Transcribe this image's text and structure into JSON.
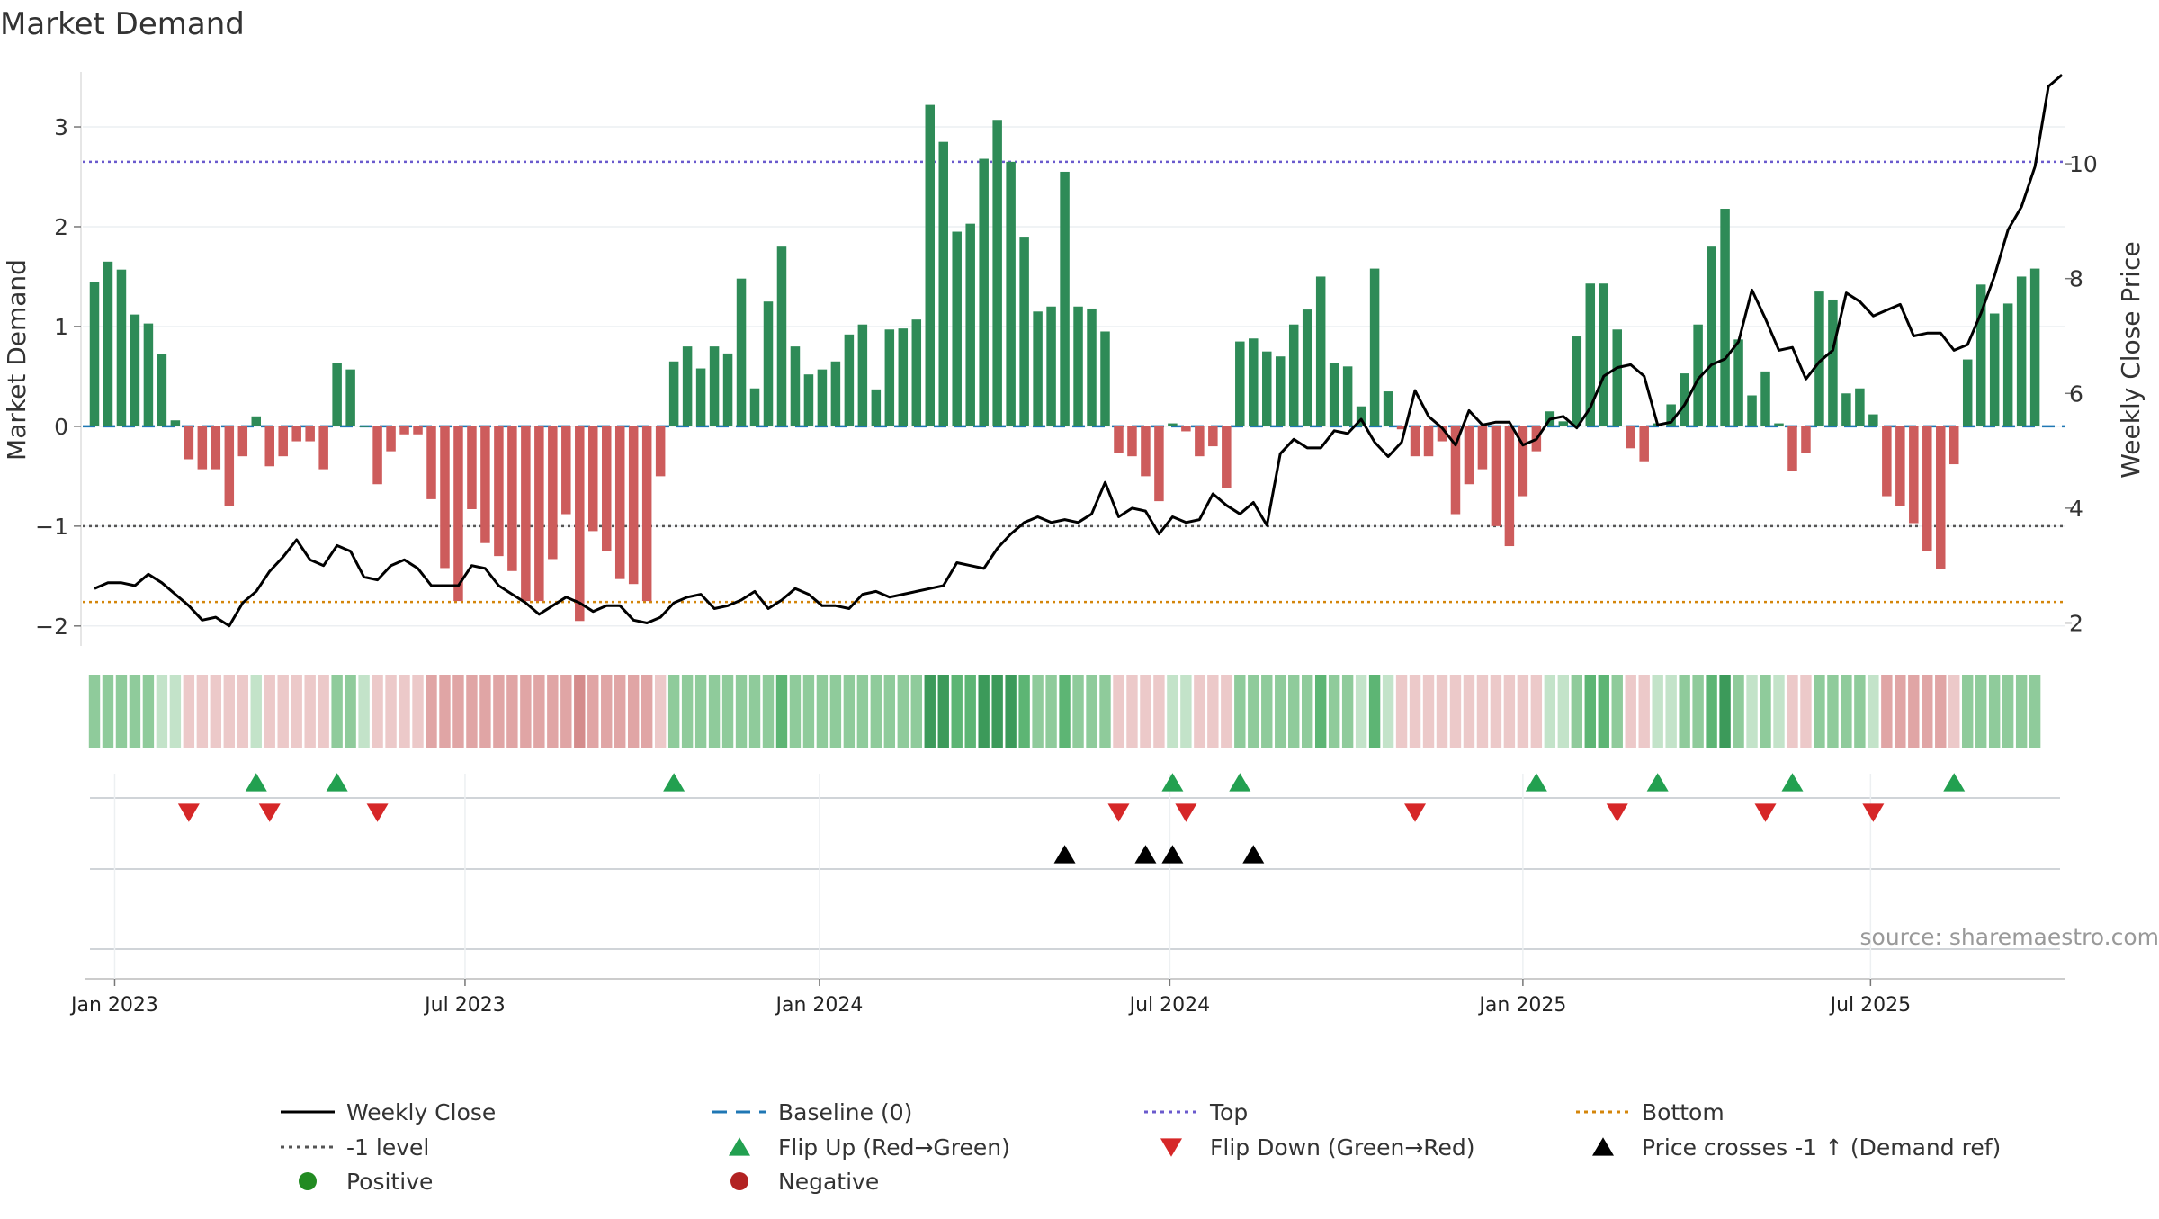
{
  "chart_data": {
    "type": "bar",
    "title": "Market Demand",
    "ylabel_left": "Market Demand",
    "ylabel_right": "Weekly Close Price",
    "source_text": "source: sharemaestro.com",
    "ylim_left": [
      -2.2,
      3.55
    ],
    "ylim_right": [
      1.6,
      11.6
    ],
    "yticks_left": [
      3,
      2,
      1,
      0,
      -1,
      -2
    ],
    "yticks_left_labels": [
      "3",
      "2",
      "1",
      "0",
      "−1",
      "−2"
    ],
    "yticks_right": [
      10,
      8,
      6,
      4,
      2
    ],
    "yticks_right_labels": [
      "10",
      "8",
      "6",
      "4",
      "2"
    ],
    "reference_lines": {
      "top": 2.65,
      "minus_one": -1,
      "bottom": -1.76,
      "baseline": 0
    },
    "x_ticks": [
      {
        "index": 1.5,
        "label": "Jan 2023"
      },
      {
        "index": 27.5,
        "label": "Jul 2023"
      },
      {
        "index": 53.8,
        "label": "Jan 2024"
      },
      {
        "index": 79.8,
        "label": "Jul 2024"
      },
      {
        "index": 106,
        "label": "Jan 2025"
      },
      {
        "index": 131.8,
        "label": "Jul 2025"
      }
    ],
    "demand": [
      1.45,
      1.65,
      1.57,
      1.12,
      1.03,
      0.72,
      0.06,
      -0.33,
      -0.43,
      -0.43,
      -0.8,
      -0.3,
      0.1,
      -0.4,
      -0.3,
      -0.15,
      -0.15,
      -0.43,
      0.63,
      0.57,
      0,
      -0.58,
      -0.25,
      -0.08,
      -0.08,
      -0.73,
      -1.42,
      -1.75,
      -0.83,
      -1.17,
      -1.3,
      -1.45,
      -1.75,
      -1.75,
      -1.33,
      -0.88,
      -1.95,
      -1.05,
      -1.25,
      -1.53,
      -1.58,
      -1.75,
      -0.5,
      0.65,
      0.8,
      0.58,
      0.8,
      0.73,
      1.48,
      0.38,
      1.25,
      1.8,
      0.8,
      0.52,
      0.57,
      0.65,
      0.92,
      1.02,
      0.37,
      0.97,
      0.98,
      1.07,
      3.22,
      2.85,
      1.95,
      2.03,
      2.68,
      3.07,
      2.65,
      1.9,
      1.15,
      1.2,
      2.55,
      1.2,
      1.18,
      0.95,
      -0.27,
      -0.3,
      -0.5,
      -0.75,
      0.03,
      -0.05,
      -0.3,
      -0.2,
      -0.62,
      0.85,
      0.88,
      0.75,
      0.7,
      1.02,
      1.17,
      1.5,
      0.63,
      0.6,
      0.2,
      1.58,
      0.35,
      -0.03,
      -0.3,
      -0.3,
      -0.15,
      -0.88,
      -0.58,
      -0.43,
      -1.0,
      -1.2,
      -0.7,
      -0.25,
      0.15,
      0.05,
      0.9,
      1.43,
      1.43,
      0.97,
      -0.22,
      -0.35,
      0.03,
      0.22,
      0.53,
      1.02,
      1.8,
      2.18,
      0.87,
      0.31,
      0.55,
      0.03,
      -0.45,
      -0.27,
      1.35,
      1.27,
      0.33,
      0.38,
      0.12,
      -0.7,
      -0.8,
      -0.97,
      -1.25,
      -1.43,
      -0.38,
      0.67,
      1.42,
      1.13,
      1.23,
      1.5,
      1.58
    ],
    "weekly_close": [
      2.6,
      2.7,
      2.7,
      2.65,
      2.85,
      2.7,
      2.5,
      2.3,
      2.05,
      2.1,
      1.95,
      2.35,
      2.55,
      2.9,
      3.15,
      3.45,
      3.1,
      3.0,
      3.35,
      3.25,
      2.8,
      2.75,
      3.0,
      3.1,
      2.95,
      2.65,
      2.65,
      2.65,
      3.0,
      2.95,
      2.65,
      2.5,
      2.35,
      2.15,
      2.3,
      2.45,
      2.35,
      2.2,
      2.3,
      2.3,
      2.05,
      2.0,
      2.1,
      2.35,
      2.45,
      2.5,
      2.25,
      2.3,
      2.4,
      2.55,
      2.25,
      2.4,
      2.6,
      2.5,
      2.3,
      2.3,
      2.25,
      2.5,
      2.55,
      2.45,
      2.5,
      2.55,
      2.6,
      2.65,
      3.05,
      3.0,
      2.95,
      3.3,
      3.55,
      3.75,
      3.85,
      3.75,
      3.8,
      3.75,
      3.9,
      4.45,
      3.85,
      4.0,
      3.95,
      3.55,
      3.85,
      3.75,
      3.8,
      4.25,
      4.05,
      3.9,
      4.1,
      3.7,
      4.95,
      5.2,
      5.05,
      5.05,
      5.35,
      5.3,
      5.55,
      5.15,
      4.9,
      5.15,
      6.05,
      5.6,
      5.4,
      5.1,
      5.7,
      5.45,
      5.5,
      5.5,
      5.1,
      5.2,
      5.55,
      5.6,
      5.4,
      5.75,
      6.3,
      6.45,
      6.5,
      6.3,
      5.45,
      5.5,
      5.8,
      6.25,
      6.5,
      6.6,
      6.9,
      7.8,
      7.3,
      6.75,
      6.8,
      6.25,
      6.55,
      6.75,
      7.75,
      7.6,
      7.35,
      7.45,
      7.55,
      7.0,
      7.05,
      7.05,
      6.75,
      6.85,
      7.4,
      8.05,
      8.85,
      9.25,
      9.95,
      11.35,
      11.55
    ],
    "shade_levels": [
      2,
      2,
      2,
      2,
      2,
      1,
      1,
      -1,
      -1,
      -1,
      -1,
      -1,
      1,
      -1,
      -1,
      -1,
      -1,
      -1,
      2,
      2,
      1,
      -1,
      -1,
      -1,
      -1,
      -2,
      -2,
      -2,
      -2,
      -2,
      -2,
      -2,
      -2,
      -2,
      -2,
      -2,
      -3,
      -2,
      -2,
      -2,
      -2,
      -2,
      -1,
      2,
      2,
      2,
      2,
      2,
      2,
      2,
      2,
      3,
      2,
      2,
      2,
      2,
      2,
      2,
      2,
      2,
      2,
      2,
      4,
      4,
      3,
      3,
      4,
      4,
      4,
      3,
      2,
      2,
      3,
      2,
      2,
      2,
      -1,
      -1,
      -1,
      -1,
      1,
      1,
      -1,
      -1,
      -1,
      2,
      2,
      2,
      2,
      2,
      2,
      3,
      2,
      2,
      1,
      3,
      1,
      -1,
      -1,
      -1,
      -1,
      -1,
      -1,
      -1,
      -1,
      -1,
      -1,
      -1,
      1,
      1,
      2,
      3,
      3,
      2,
      -1,
      -1,
      1,
      1,
      2,
      2,
      3,
      4,
      2,
      1,
      2,
      1,
      -1,
      -1,
      2,
      2,
      2,
      2,
      1,
      -2,
      -2,
      -2,
      -2,
      -2,
      -1,
      2,
      2,
      2,
      2,
      2,
      2
    ],
    "flip_up_indices": [
      12,
      18,
      43,
      80,
      85,
      107,
      116,
      126,
      138
    ],
    "flip_down_indices": [
      7,
      13,
      21,
      76,
      81,
      98,
      113,
      124,
      132
    ],
    "price_cross_indices": [
      72,
      78,
      80,
      86
    ],
    "legend": [
      {
        "label": "Weekly Close",
        "marker": "line",
        "color": "#000000"
      },
      {
        "label": "Baseline (0)",
        "marker": "dash",
        "color": "#1f77b4"
      },
      {
        "label": "Top",
        "marker": "dot",
        "color": "#6a5acd"
      },
      {
        "label": "Bottom",
        "marker": "dot",
        "color": "#d4860b"
      },
      {
        "label": "-1 level",
        "marker": "dot",
        "color": "#555555"
      },
      {
        "label": "Flip Up (Red→Green)",
        "marker": "triangle-up",
        "color": "#22a050"
      },
      {
        "label": "Flip Down (Green→Red)",
        "marker": "triangle-down",
        "color": "#d62728"
      },
      {
        "label": "Price crosses -1 ↑ (Demand ref)",
        "marker": "triangle-up",
        "color": "#000000"
      },
      {
        "label": "Positive",
        "marker": "circle",
        "color": "#228b22"
      },
      {
        "label": "Negative",
        "marker": "circle",
        "color": "#b22222"
      }
    ],
    "colors": {
      "positive_bar": "#2e8b57",
      "negative_bar": "#cd5c5c",
      "close_line": "#000000",
      "baseline": "#1f77b4",
      "top": "#6a5acd",
      "bottom": "#d4860b",
      "minus_one": "#555555",
      "flip_up": "#22a050",
      "flip_down": "#d62728",
      "cross": "#000000"
    }
  }
}
